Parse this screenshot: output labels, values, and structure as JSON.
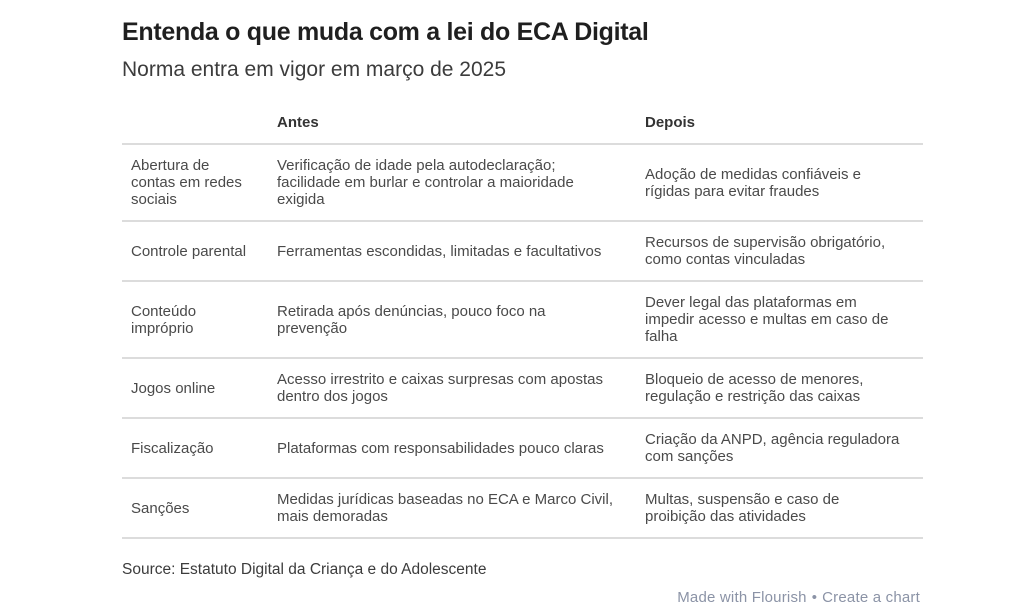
{
  "chart_data": {
    "type": "table",
    "title": "Entenda o que muda com a lei do ECA Digital",
    "subtitle": "Norma entra em vigor em março de 2025",
    "columns": [
      "",
      "Antes",
      "Depois"
    ],
    "rows": [
      {
        "category": "Abertura de\ncontas em redes\nsociais",
        "antes": "Verificação de idade pela autodeclaração;\nfacilidade em burlar e controlar a maioridade\nexigida",
        "depois": "Adoção de medidas confiáveis e\nrígidas para evitar fraudes"
      },
      {
        "category": "Controle parental",
        "antes": "Ferramentas escondidas, limitadas e facultativos",
        "depois": "Recursos de supervisão obrigatório,\ncomo contas vinculadas"
      },
      {
        "category": "Conteúdo\nimpróprio",
        "antes": "Retirada após denúncias, pouco foco na\nprevenção",
        "depois": "Dever legal das plataformas em\nimpedir acesso e multas em caso de\nfalha"
      },
      {
        "category": "Jogos online",
        "antes": "Acesso irrestrito e caixas surpresas com apostas\ndentro dos jogos",
        "depois": "Bloqueio de acesso de menores,\nregulação e restrição das caixas"
      },
      {
        "category": "Fiscalização",
        "antes": "Plataformas com responsabilidades pouco claras",
        "depois": "Criação da ANPD, agência reguladora\ncom sanções"
      },
      {
        "category": "Sanções",
        "antes": "Medidas jurídicas baseadas no ECA e Marco Civil,\nmais demoradas",
        "depois": "Multas, suspensão e caso de\nproibição das atividades"
      }
    ],
    "source": "Source: Estatuto Digital da Criança e do Adolescente",
    "layout": {
      "grid": "horizontal row dividers only",
      "legend": "none"
    }
  },
  "credit": {
    "made_with": "Made with Flourish",
    "separator": "•",
    "create_chart": "Create a chart"
  },
  "colors": {
    "background": "#ffffff",
    "title_text": "#1f1f1f",
    "body_text": "#4a4a4a",
    "header_text": "#333333",
    "divider": "#dcdcdc",
    "credit_text": "#8b93a6"
  }
}
